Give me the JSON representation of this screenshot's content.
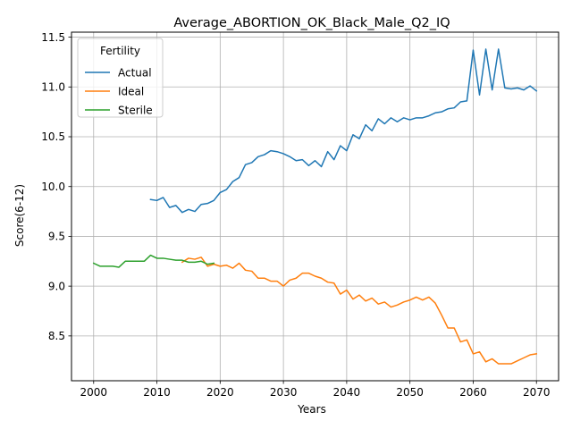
{
  "chart_data": {
    "type": "line",
    "title": "Average_ABORTION_OK_Black_Male_Q2_IQ",
    "xlabel": "Years",
    "ylabel": "Score(6-12)",
    "xlim": [
      1996.5,
      2073.5
    ],
    "ylim": [
      8.05,
      11.55
    ],
    "xticks": [
      2000,
      2010,
      2020,
      2030,
      2040,
      2050,
      2060,
      2070
    ],
    "yticks": [
      8.5,
      9.0,
      9.5,
      10.0,
      10.5,
      11.0,
      11.5
    ],
    "xtick_labels": [
      "2000",
      "2010",
      "2020",
      "2030",
      "2040",
      "2050",
      "2060",
      "2070"
    ],
    "ytick_labels": [
      "8.5",
      "9.0",
      "9.5",
      "10.0",
      "10.5",
      "11.0",
      "11.5"
    ],
    "grid": true,
    "legend": {
      "title": "Fertility",
      "position": "top-left"
    },
    "series": [
      {
        "name": "Actual",
        "color": "#1f77b4",
        "x": [
          2009,
          2010,
          2011,
          2012,
          2013,
          2014,
          2015,
          2016,
          2017,
          2018,
          2019,
          2020,
          2021,
          2022,
          2023,
          2024,
          2025,
          2026,
          2027,
          2028,
          2029,
          2030,
          2031,
          2032,
          2033,
          2034,
          2035,
          2036,
          2037,
          2038,
          2039,
          2040,
          2041,
          2042,
          2043,
          2044,
          2045,
          2046,
          2047,
          2048,
          2049,
          2050,
          2051,
          2052,
          2053,
          2054,
          2055,
          2056,
          2057,
          2058,
          2059,
          2060,
          2061,
          2062,
          2063,
          2064,
          2065,
          2066,
          2067,
          2068,
          2069,
          2070
        ],
        "y": [
          9.87,
          9.86,
          9.89,
          9.79,
          9.81,
          9.74,
          9.77,
          9.75,
          9.82,
          9.83,
          9.86,
          9.94,
          9.97,
          10.05,
          10.09,
          10.22,
          10.24,
          10.3,
          10.32,
          10.36,
          10.35,
          10.33,
          10.3,
          10.26,
          10.27,
          10.21,
          10.26,
          10.2,
          10.35,
          10.27,
          10.41,
          10.36,
          10.52,
          10.48,
          10.62,
          10.56,
          10.68,
          10.63,
          10.69,
          10.65,
          10.69,
          10.67,
          10.69,
          10.69,
          10.71,
          10.74,
          10.75,
          10.78,
          10.79,
          10.85,
          10.86,
          11.37,
          10.92,
          11.38,
          10.97,
          11.38,
          10.99,
          10.98,
          10.99,
          10.97,
          11.01,
          10.96
        ]
      },
      {
        "name": "Ideal",
        "color": "#ff7f0e",
        "x": [
          2014,
          2015,
          2016,
          2017,
          2018,
          2019,
          2020,
          2021,
          2022,
          2023,
          2024,
          2025,
          2026,
          2027,
          2028,
          2029,
          2030,
          2031,
          2032,
          2033,
          2034,
          2035,
          2036,
          2037,
          2038,
          2039,
          2040,
          2041,
          2042,
          2043,
          2044,
          2045,
          2046,
          2047,
          2048,
          2049,
          2050,
          2051,
          2052,
          2053,
          2054,
          2055,
          2056,
          2057,
          2058,
          2059,
          2060,
          2061,
          2062,
          2063,
          2064,
          2065,
          2066,
          2067,
          2068,
          2069,
          2070
        ],
        "y": [
          9.24,
          9.28,
          9.27,
          9.29,
          9.2,
          9.22,
          9.2,
          9.21,
          9.18,
          9.23,
          9.16,
          9.15,
          9.08,
          9.08,
          9.05,
          9.05,
          9.0,
          9.06,
          9.08,
          9.13,
          9.13,
          9.1,
          9.08,
          9.04,
          9.03,
          8.92,
          8.96,
          8.87,
          8.91,
          8.85,
          8.88,
          8.82,
          8.84,
          8.79,
          8.81,
          8.84,
          8.86,
          8.89,
          8.86,
          8.89,
          8.83,
          8.71,
          8.58,
          8.58,
          8.44,
          8.46,
          8.32,
          8.34,
          8.24,
          8.27,
          8.22,
          8.22,
          8.22,
          8.25,
          8.28,
          8.31,
          8.32
        ]
      },
      {
        "name": "Sterile",
        "color": "#2ca02c",
        "x": [
          2000,
          2001,
          2002,
          2003,
          2004,
          2005,
          2006,
          2007,
          2008,
          2009,
          2010,
          2011,
          2012,
          2013,
          2014,
          2015,
          2016,
          2017,
          2018,
          2019
        ],
        "y": [
          9.23,
          9.2,
          9.2,
          9.2,
          9.19,
          9.25,
          9.25,
          9.25,
          9.25,
          9.31,
          9.28,
          9.28,
          9.27,
          9.26,
          9.26,
          9.24,
          9.24,
          9.25,
          9.22,
          9.23
        ]
      }
    ]
  }
}
